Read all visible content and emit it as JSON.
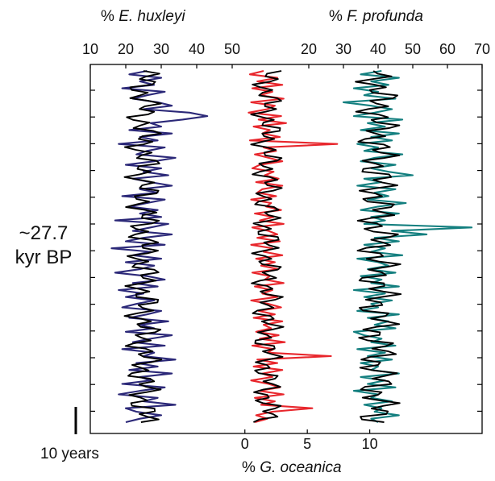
{
  "chart_data": {
    "type": "line",
    "age_annotation": {
      "line1": "~27.7",
      "line2": "kyr BP"
    },
    "scale_bar_label": "10 years",
    "colors": {
      "ehux": "#2b2878",
      "gocea": "#e8262c",
      "fpro": "#137f7f",
      "smooth": "#000000"
    },
    "axes": {
      "ehux": {
        "prefix": "% ",
        "name": "E. huxleyi",
        "range": [
          10,
          50
        ],
        "ticks": [
          10,
          20,
          30,
          40,
          50
        ],
        "tick_labels": [
          "10",
          "20",
          "30",
          "40",
          "50"
        ]
      },
      "fpro": {
        "prefix": "% ",
        "name": "F. profunda",
        "range": [
          10,
          70
        ],
        "ticks": [
          20,
          30,
          40,
          50,
          60,
          70
        ],
        "tick_labels": [
          "20",
          "30",
          "40",
          "50",
          "60",
          "70"
        ]
      },
      "gocea": {
        "prefix": "% ",
        "name": "G. oceanica",
        "range": [
          -0.5,
          19
        ],
        "ticks": [
          0,
          5,
          10
        ],
        "tick_labels": [
          "0",
          "5",
          "10"
        ]
      }
    },
    "series": [
      {
        "axis": "ehux",
        "smooth_mean": 25,
        "smooth_amp": 4.5,
        "values": [
          26,
          21,
          30,
          24,
          28,
          19,
          31,
          26,
          22,
          29,
          33,
          25,
          38,
          43,
          36,
          27,
          30,
          21,
          33,
          24,
          29,
          18,
          31,
          26,
          23,
          34,
          28,
          20,
          30,
          25,
          32,
          22,
          27,
          33,
          24,
          29,
          19,
          31,
          26,
          21,
          29,
          24,
          30,
          17,
          32,
          27,
          22,
          33,
          25,
          20,
          31,
          16,
          27,
          22,
          30,
          20,
          28,
          24,
          17,
          26,
          31,
          22,
          29,
          18,
          25,
          20,
          28,
          23,
          19,
          30,
          26,
          21,
          32,
          24,
          28,
          20,
          33,
          27,
          22,
          31,
          19,
          28,
          25,
          34,
          23,
          29,
          21,
          33,
          24,
          27,
          19,
          31,
          24,
          18,
          29,
          25,
          34,
          20,
          23,
          30,
          24,
          20
        ]
      },
      {
        "axis": "gocea",
        "smooth_mean": 1.8,
        "smooth_amp": 1.1,
        "values": [
          1.5,
          0.4,
          2.6,
          1.0,
          3.0,
          0.6,
          2.2,
          1.2,
          3.1,
          0.5,
          2.4,
          1.8,
          0.3,
          2.9,
          1.1,
          3.3,
          0.7,
          2.0,
          1.4,
          2.8,
          0.4,
          7.4,
          1.5,
          2.5,
          0.8,
          1.9,
          3.0,
          1.2,
          0.6,
          2.3,
          1.6,
          2.7,
          0.9,
          3.0,
          1.4,
          1.0,
          2.5,
          0.5,
          2.1,
          1.7,
          2.9,
          0.8,
          2.3,
          1.2,
          3.1,
          0.6,
          1.9,
          2.6,
          1.0,
          2.8,
          0.5,
          2.2,
          1.5,
          3.0,
          0.9,
          2.4,
          1.3,
          2.7,
          0.6,
          2.0,
          1.6,
          3.1,
          0.8,
          2.2,
          1.4,
          2.6,
          0.5,
          1.9,
          2.9,
          1.1,
          2.4,
          0.7,
          3.0,
          1.5,
          2.1,
          0.9,
          2.7,
          1.2,
          3.2,
          0.6,
          2.3,
          1.8,
          6.9,
          1.0,
          2.6,
          0.7,
          3.0,
          1.4,
          2.2,
          0.5,
          1.9,
          2.8,
          1.1,
          3.1,
          0.8,
          2.4,
          1.3,
          5.4,
          2.2,
          0.9,
          1.8,
          0.8
        ]
      },
      {
        "axis": "fpro",
        "smooth_mean": 40,
        "smooth_amp": 5.5,
        "values": [
          41,
          35,
          46,
          38,
          43,
          33,
          40,
          36,
          45,
          30,
          38,
          44,
          39,
          33,
          47,
          37,
          42,
          35,
          46,
          38,
          44,
          34,
          40,
          36,
          47,
          39,
          35,
          45,
          38,
          43,
          50,
          36,
          41,
          34,
          45,
          39,
          43,
          37,
          48,
          40,
          35,
          46,
          38,
          42,
          36,
          67,
          44,
          54,
          39,
          46,
          36,
          42,
          38,
          47,
          34,
          40,
          43,
          37,
          45,
          35,
          41,
          38,
          46,
          33,
          42,
          36,
          44,
          38,
          40,
          34,
          46,
          37,
          43,
          39,
          45,
          33,
          36,
          41,
          38,
          45,
          34,
          42,
          37,
          44,
          35,
          40,
          38,
          46,
          35,
          42,
          37,
          45,
          33,
          40,
          38,
          44,
          36,
          41,
          39,
          46,
          38,
          40
        ]
      }
    ]
  }
}
